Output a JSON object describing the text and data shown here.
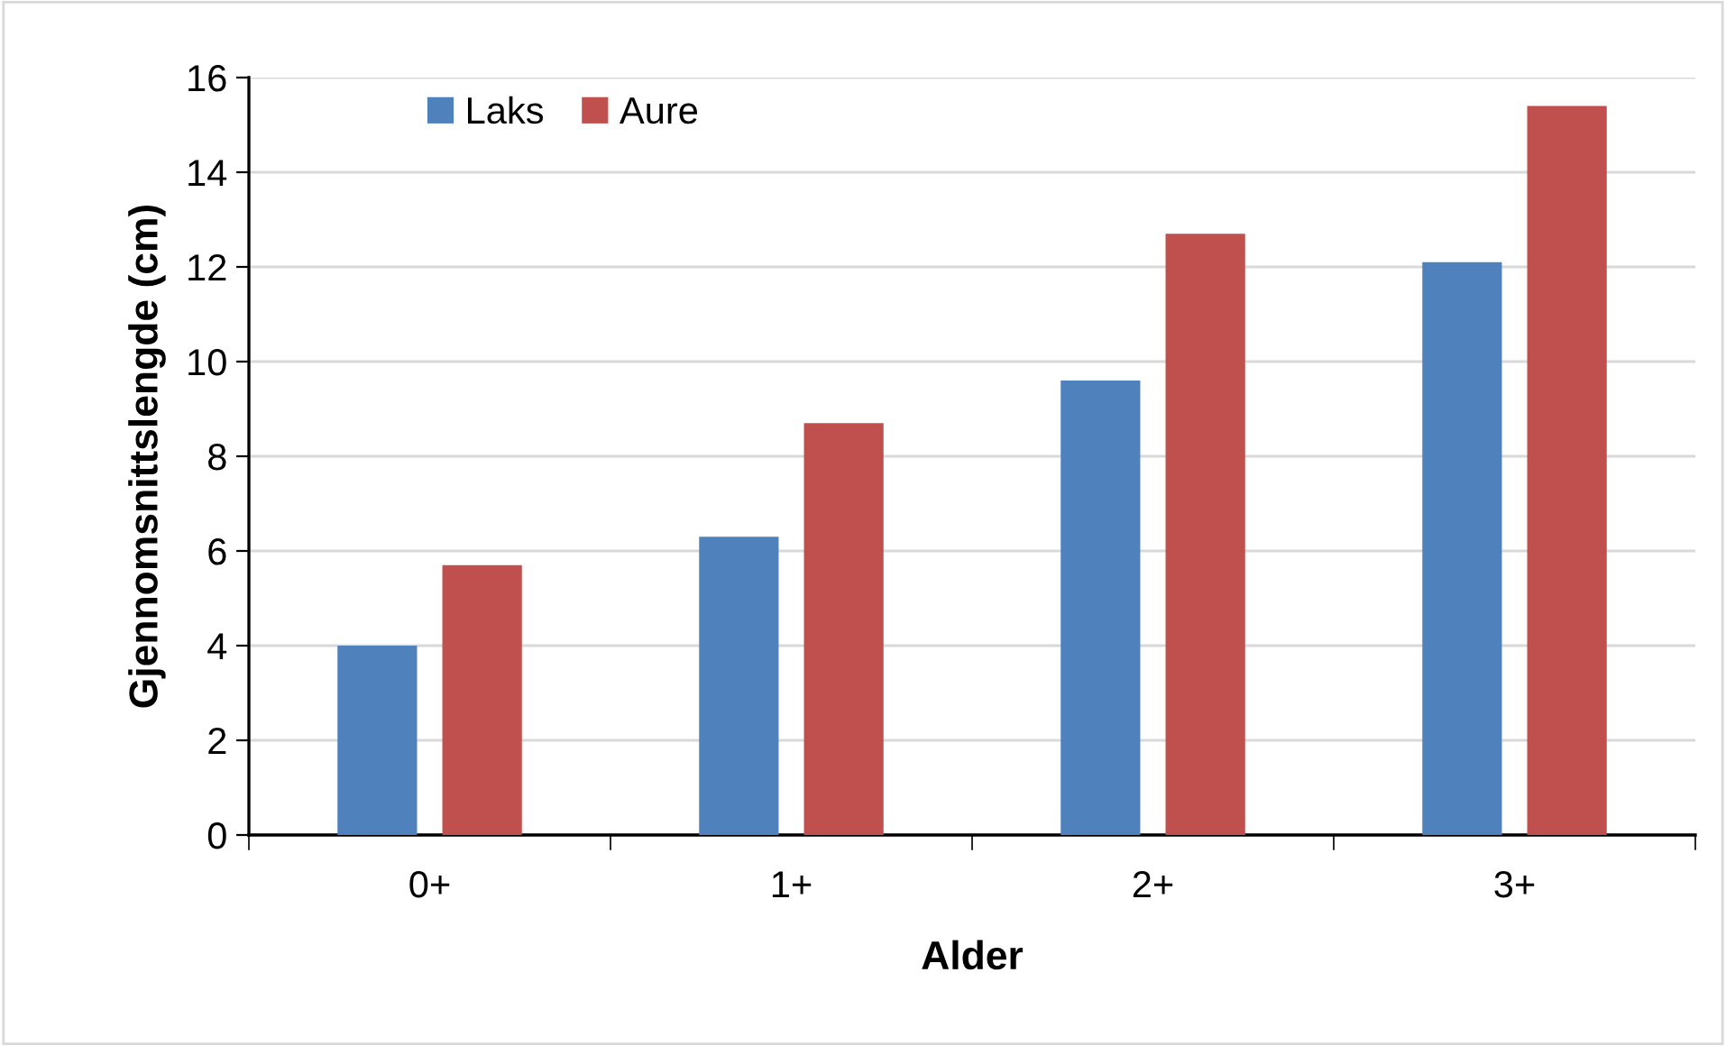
{
  "chart_data": {
    "type": "bar",
    "xlabel": "Alder",
    "ylabel": "Gjennomsnittslengde (cm)",
    "categories": [
      "0+",
      "1+",
      "2+",
      "3+"
    ],
    "series": [
      {
        "name": "Laks",
        "color": "#4f81bd",
        "values": [
          4.0,
          6.3,
          9.6,
          12.1
        ]
      },
      {
        "name": "Aure",
        "color": "#c0504d",
        "values": [
          5.7,
          8.7,
          12.7,
          15.4
        ]
      }
    ],
    "ylim": [
      0,
      16
    ],
    "yticks": [
      0,
      2,
      4,
      6,
      8,
      10,
      12,
      14,
      16
    ],
    "grid": "y",
    "legend": "top left"
  }
}
